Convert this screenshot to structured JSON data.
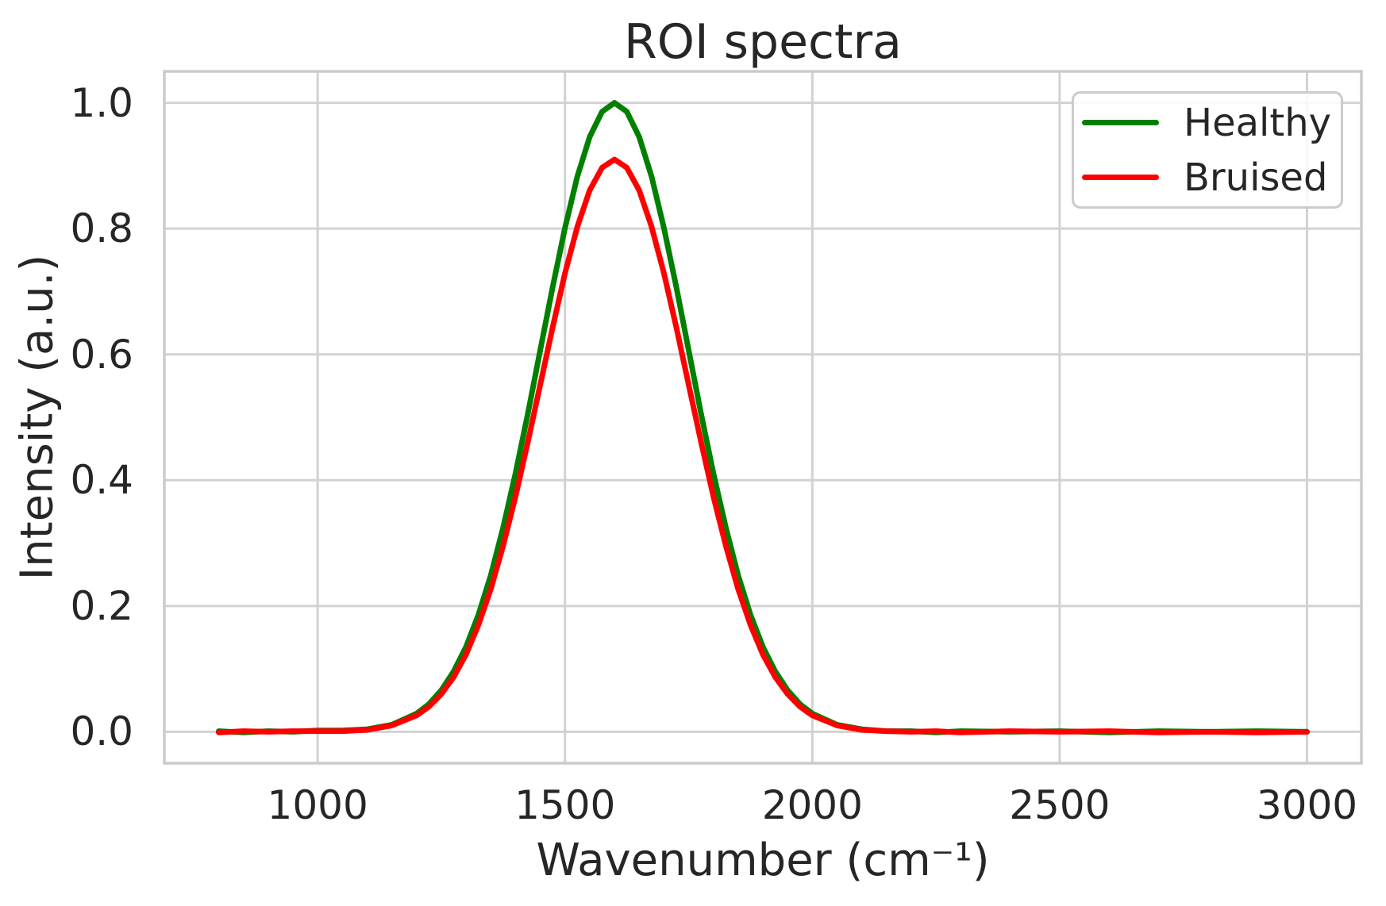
{
  "figure": {
    "background_color": "#ffffff",
    "text_color": "#262626",
    "grid_color": "#d2d2d2",
    "spine_color": "#cbcbcb"
  },
  "chart_data": {
    "type": "line",
    "title": "ROI spectra",
    "xlabel": "Wavenumber (cm⁻¹)",
    "ylabel": "Intensity (a.u.)",
    "xlim": [
      690,
      3110
    ],
    "ylim": [
      -0.05,
      1.05
    ],
    "grid": true,
    "legend_position": "upper right",
    "x_ticks": [
      1000,
      1500,
      2000,
      2500,
      3000
    ],
    "x_tick_labels": [
      "1000",
      "1500",
      "2000",
      "2500",
      "3000"
    ],
    "y_ticks": [
      0.0,
      0.2,
      0.4,
      0.6,
      0.8,
      1.0
    ],
    "y_tick_labels": [
      "0.0",
      "0.2",
      "0.4",
      "0.6",
      "0.8",
      "1.0"
    ],
    "x": [
      800,
      850,
      900,
      950,
      1000,
      1050,
      1100,
      1150,
      1200,
      1225,
      1250,
      1275,
      1300,
      1325,
      1350,
      1375,
      1400,
      1425,
      1450,
      1475,
      1500,
      1525,
      1550,
      1575,
      1600,
      1625,
      1650,
      1675,
      1700,
      1725,
      1750,
      1775,
      1800,
      1825,
      1850,
      1875,
      1900,
      1925,
      1950,
      1975,
      2000,
      2050,
      2100,
      2150,
      2200,
      2250,
      2300,
      2400,
      2500,
      2600,
      2700,
      2800,
      2900,
      3000
    ],
    "series": [
      {
        "name": "Healthy",
        "color": "#008000",
        "peak_center": 1600,
        "peak_intensity": 1.0,
        "values": [
          0.001,
          -0.001,
          0.001,
          0.0,
          0.002,
          0.002,
          0.004,
          0.011,
          0.029,
          0.044,
          0.066,
          0.096,
          0.135,
          0.186,
          0.249,
          0.325,
          0.411,
          0.506,
          0.607,
          0.707,
          0.801,
          0.883,
          0.946,
          0.986,
          1.0,
          0.986,
          0.946,
          0.883,
          0.801,
          0.707,
          0.607,
          0.506,
          0.411,
          0.325,
          0.249,
          0.186,
          0.135,
          0.096,
          0.066,
          0.044,
          0.029,
          0.011,
          0.004,
          0.001,
          0.001,
          -0.001,
          0.001,
          0.0,
          0.001,
          -0.001,
          0.001,
          0.0,
          0.001,
          0.0
        ]
      },
      {
        "name": "Bruised",
        "color": "#ff0000",
        "peak_center": 1600,
        "peak_intensity": 0.91,
        "values": [
          -0.001,
          0.001,
          0.0,
          0.001,
          0.001,
          0.001,
          0.003,
          0.01,
          0.026,
          0.04,
          0.06,
          0.087,
          0.123,
          0.17,
          0.227,
          0.296,
          0.374,
          0.461,
          0.552,
          0.643,
          0.729,
          0.803,
          0.861,
          0.897,
          0.91,
          0.897,
          0.861,
          0.803,
          0.729,
          0.643,
          0.552,
          0.461,
          0.374,
          0.296,
          0.227,
          0.17,
          0.123,
          0.087,
          0.06,
          0.04,
          0.026,
          0.01,
          0.003,
          0.001,
          0.0,
          0.001,
          -0.001,
          0.001,
          0.0,
          0.001,
          -0.001,
          0.0,
          -0.001,
          0.0
        ]
      }
    ]
  }
}
